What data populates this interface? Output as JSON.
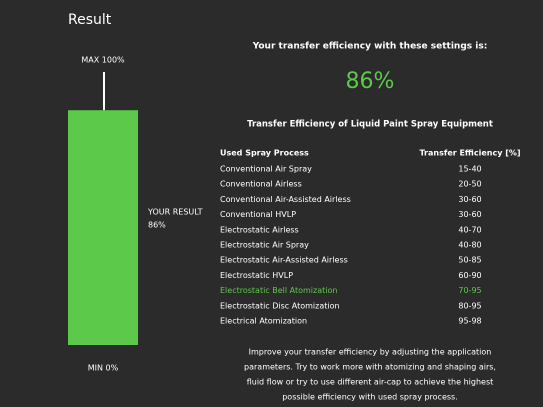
{
  "header": {
    "title": "Result"
  },
  "gauge": {
    "max_label": "MAX 100%",
    "min_label": "MIN 0%",
    "range": [
      0,
      100
    ],
    "value": 86,
    "result_label": "YOUR RESULT",
    "value_label": "86%"
  },
  "summary": {
    "heading": "Your transfer efficiency with these settings is:",
    "value_label": "86%"
  },
  "table": {
    "title": "Transfer Efficiency of Liquid Paint Spray Equipment",
    "columns": [
      "Used Spray Process",
      "Transfer Efficiency [%]"
    ],
    "rows": [
      [
        "Conventional Air Spray",
        "15-40"
      ],
      [
        "Conventional Airless",
        "20-50"
      ],
      [
        "Conventional Air-Assisted Airless",
        "30-60"
      ],
      [
        "Conventional HVLP",
        "30-60"
      ],
      [
        "Electrostatic Airless",
        "40-70"
      ],
      [
        "Electrostatic Air Spray",
        "40-80"
      ],
      [
        "Electrostatic Air-Assisted Airless",
        "50-85"
      ],
      [
        "Electrostatic HVLP",
        "60-90"
      ],
      [
        "Electrostatic Bell Atomization",
        "70-95"
      ],
      [
        "Electrostatic Disc Atomization",
        "80-95"
      ],
      [
        "Electrical Atomization",
        "95-98"
      ]
    ],
    "highlight_row": 8
  },
  "footer": {
    "lines": [
      "Improve your transfer efficiency by adjusting the application",
      "parameters. Try to work more with atomizing and shaping airs,",
      "fluid flow or try to use different air-cap to achieve the highest",
      "possible efficiency with used spray process."
    ]
  }
}
